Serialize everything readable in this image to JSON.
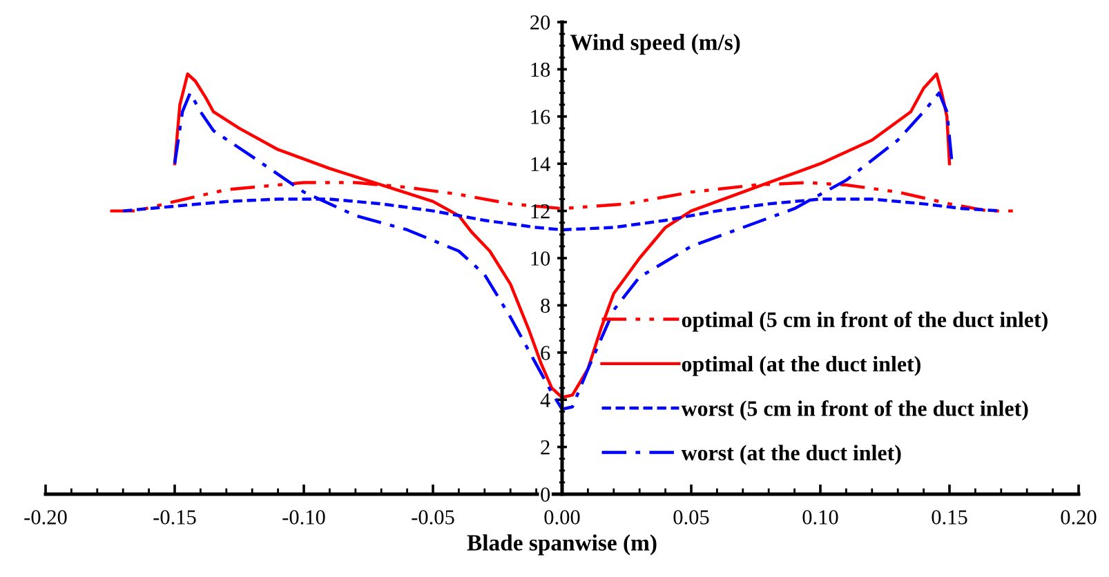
{
  "chart_data": {
    "type": "line",
    "xlabel": "Blade spanwise (m)",
    "ylabel": "Wind speed (m/s)",
    "xlim": [
      -0.2,
      0.2
    ],
    "xticks": [
      {
        "value": -0.2,
        "label": "-0.20"
      },
      {
        "value": -0.15,
        "label": "-0.15"
      },
      {
        "value": -0.1,
        "label": "-0.10"
      },
      {
        "value": -0.05,
        "label": "-0.05"
      },
      {
        "value": 0,
        "label": "0.00"
      },
      {
        "value": 0.05,
        "label": "0.05"
      },
      {
        "value": 0.1,
        "label": "0.10"
      },
      {
        "value": 0.15,
        "label": "0.15"
      },
      {
        "value": 0.2,
        "label": "0.20"
      }
    ],
    "ylim": [
      0,
      20
    ],
    "yticks": [
      0,
      2,
      4,
      6,
      8,
      10,
      12,
      14,
      16,
      18,
      20
    ],
    "grid": false,
    "legend": "bottom right",
    "marker": "none",
    "series": [
      {
        "name": "optimal (5 cm in front of the duct inlet)",
        "color": "#ff0000",
        "line_style": "dashdotdot",
        "x": [
          -0.175,
          -0.165,
          -0.15,
          -0.13,
          -0.1,
          -0.08,
          -0.06,
          -0.04,
          -0.02,
          0,
          0.025,
          0.05,
          0.075,
          0.095,
          0.11,
          0.13,
          0.15,
          0.165,
          0.175
        ],
        "values": [
          12.0,
          12.0,
          12.4,
          12.9,
          13.2,
          13.2,
          13.0,
          12.7,
          12.3,
          12.1,
          12.3,
          12.8,
          13.1,
          13.2,
          13.1,
          12.8,
          12.3,
          12.0,
          12.0
        ]
      },
      {
        "name": "optimal (at the duct inlet)",
        "color": "#ff0000",
        "line_style": "solid",
        "x": [
          -0.15,
          -0.148,
          -0.145,
          -0.142,
          -0.138,
          -0.135,
          -0.125,
          -0.11,
          -0.09,
          -0.07,
          -0.05,
          -0.04,
          -0.035,
          -0.028,
          -0.02,
          -0.013,
          -0.008,
          -0.004,
          0,
          0.004,
          0.01,
          0.015,
          0.02,
          0.03,
          0.04,
          0.05,
          0.075,
          0.1,
          0.12,
          0.135,
          0.14,
          0.145,
          0.147,
          0.149,
          0.15
        ],
        "values": [
          14.0,
          16.5,
          17.8,
          17.5,
          16.8,
          16.2,
          15.5,
          14.6,
          13.8,
          13.1,
          12.4,
          11.8,
          11.1,
          10.3,
          8.9,
          7.0,
          5.5,
          4.5,
          4.1,
          4.2,
          5.3,
          7.0,
          8.5,
          10.0,
          11.3,
          12.0,
          13.0,
          14.0,
          15.0,
          16.2,
          17.2,
          17.8,
          17.0,
          16.0,
          14.0
        ]
      },
      {
        "name": "worst (5 cm in front of the duct inlet)",
        "color": "#0000ff",
        "line_style": "dashed",
        "x": [
          -0.17,
          -0.15,
          -0.13,
          -0.11,
          -0.09,
          -0.07,
          -0.05,
          -0.03,
          -0.01,
          0,
          0.02,
          0.04,
          0.06,
          0.08,
          0.1,
          0.12,
          0.14,
          0.155,
          0.17
        ],
        "values": [
          12.0,
          12.2,
          12.4,
          12.5,
          12.5,
          12.3,
          12.0,
          11.6,
          11.3,
          11.2,
          11.3,
          11.6,
          12.0,
          12.3,
          12.5,
          12.5,
          12.3,
          12.1,
          12.0
        ]
      },
      {
        "name": "worst (at the duct inlet)",
        "color": "#0000ff",
        "line_style": "dashdot",
        "x": [
          -0.15,
          -0.147,
          -0.144,
          -0.14,
          -0.135,
          -0.12,
          -0.1,
          -0.08,
          -0.06,
          -0.04,
          -0.03,
          -0.02,
          -0.01,
          -0.004,
          0,
          0.004,
          0.01,
          0.02,
          0.03,
          0.05,
          0.07,
          0.09,
          0.11,
          0.13,
          0.14,
          0.146,
          0.149,
          0.151
        ],
        "values": [
          14.0,
          16.2,
          17.0,
          16.2,
          15.4,
          14.3,
          12.8,
          11.8,
          11.2,
          10.3,
          9.3,
          7.5,
          5.5,
          4.3,
          3.6,
          3.7,
          5.3,
          7.8,
          9.2,
          10.5,
          11.3,
          12.1,
          13.3,
          15.0,
          16.2,
          17.0,
          16.2,
          14.0
        ]
      }
    ]
  }
}
